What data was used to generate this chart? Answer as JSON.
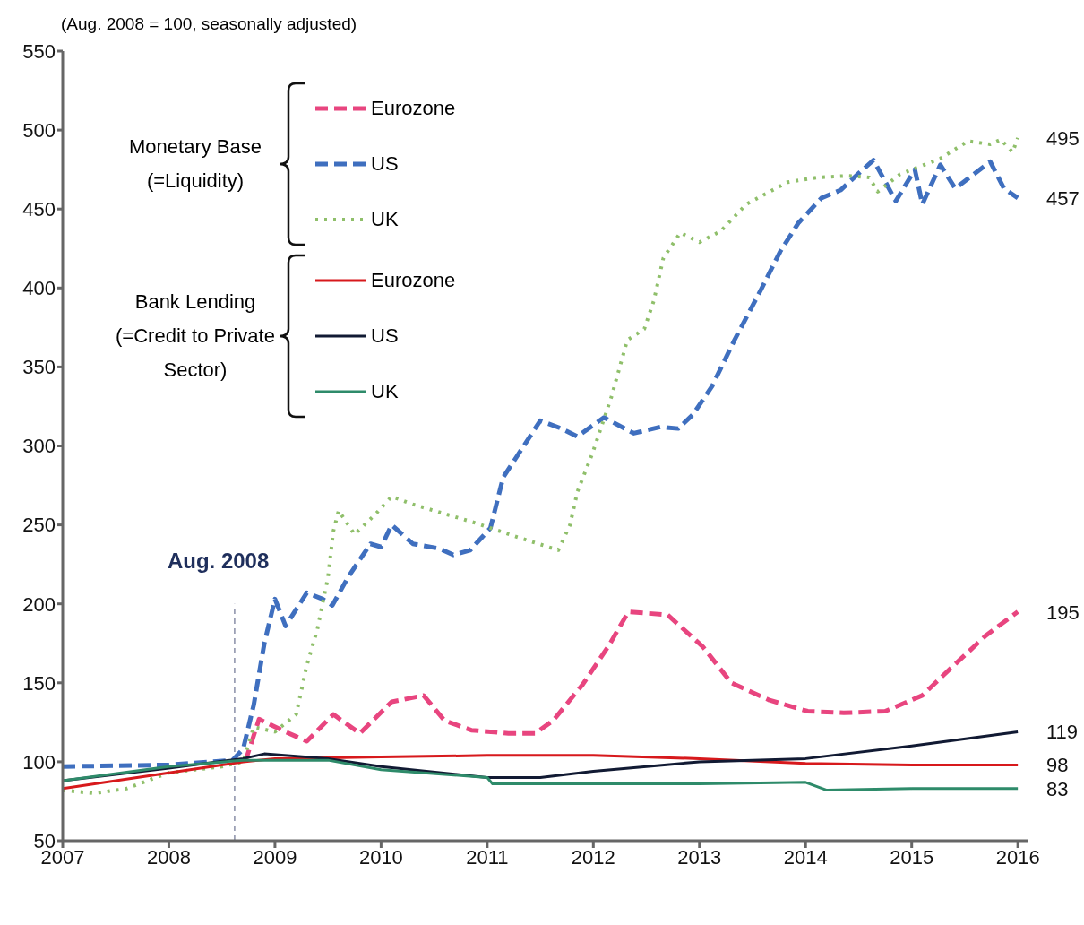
{
  "chart_data": {
    "type": "line",
    "subtitle": "(Aug. 2008 = 100, seasonally adjusted)",
    "annotations": [
      "Monetary Base (=Liquidity)",
      "Bank Lending (=Credit to Private Sector)"
    ],
    "xlim": [
      2007,
      2016.1
    ],
    "xticks": [
      2007,
      2008,
      2009,
      2010,
      2011,
      2012,
      2013,
      2014,
      2015,
      2016
    ],
    "ylim": [
      50,
      550
    ],
    "yticks": [
      50,
      100,
      150,
      200,
      250,
      300,
      350,
      400,
      450,
      500,
      550
    ],
    "legend": "top left",
    "marker": "none",
    "ref_lines": [
      {
        "axis": "x",
        "value": 2008.62,
        "label": "Aug. 2008",
        "color": "#8a8fa8",
        "line_style": "dashed"
      }
    ],
    "series": [
      {
        "name": "Eurozone",
        "color": "#e8457f",
        "line_style": "dashed",
        "x": [
          2008.72,
          2008.85,
          2009.1,
          2009.3,
          2009.55,
          2009.8,
          2010.1,
          2010.4,
          2010.6,
          2010.85,
          2011.2,
          2011.45,
          2011.62,
          2011.9,
          2012.15,
          2012.33,
          2012.7,
          2013.03,
          2013.3,
          2013.66,
          2014.02,
          2014.36,
          2014.75,
          2015.1,
          2015.38,
          2015.7,
          2016.0
        ],
        "values": [
          100,
          127,
          119,
          113,
          130,
          118,
          138,
          142,
          126,
          120,
          118,
          118,
          126,
          149,
          174,
          195,
          193,
          173,
          150,
          139,
          132,
          131,
          132,
          142,
          160,
          180,
          195
        ],
        "value_labels": [
          null,
          null,
          null,
          null,
          null,
          null,
          null,
          null,
          null,
          null,
          null,
          null,
          null,
          null,
          null,
          null,
          null,
          null,
          null,
          null,
          null,
          null,
          null,
          null,
          null,
          null,
          "195"
        ]
      },
      {
        "name": "US",
        "color": "#3f6fbf",
        "line_style": "dashed",
        "x": [
          2007,
          2008.0,
          2008.6,
          2008.7,
          2008.8,
          2008.9,
          2009.0,
          2009.1,
          2009.3,
          2009.45,
          2009.54,
          2009.69,
          2009.9,
          2010.0,
          2010.1,
          2010.3,
          2010.55,
          2010.68,
          2010.84,
          2011.03,
          2011.15,
          2011.5,
          2011.7,
          2011.85,
          2012.1,
          2012.38,
          2012.63,
          2012.8,
          2012.94,
          2013.12,
          2013.33,
          2013.58,
          2013.76,
          2013.93,
          2014.15,
          2014.33,
          2014.54,
          2014.64,
          2014.85,
          2015.03,
          2015.1,
          2015.27,
          2015.41,
          2015.74,
          2015.87,
          2016.0
        ],
        "values": [
          97,
          98,
          101,
          108,
          136,
          175,
          203,
          186,
          207,
          203,
          199,
          217,
          238,
          236,
          250,
          238,
          235,
          231,
          234,
          248,
          280,
          316,
          311,
          306,
          318,
          308,
          312,
          311,
          320,
          338,
          367,
          399,
          423,
          441,
          457,
          462,
          475,
          481,
          455,
          475,
          453,
          478,
          463,
          480,
          463,
          457
        ],
        "value_labels": [
          null,
          null,
          null,
          null,
          null,
          null,
          null,
          null,
          null,
          null,
          null,
          null,
          null,
          null,
          null,
          null,
          null,
          null,
          null,
          null,
          null,
          null,
          null,
          null,
          null,
          null,
          null,
          null,
          null,
          null,
          null,
          null,
          null,
          null,
          null,
          null,
          null,
          null,
          null,
          null,
          null,
          null,
          null,
          null,
          null,
          "457"
        ]
      },
      {
        "name": "UK",
        "color": "#8fbf6a",
        "line_style": "dotted",
        "x": [
          2007,
          2007.3,
          2007.6,
          2008.0,
          2008.5,
          2008.7,
          2008.8,
          2009.0,
          2009.2,
          2009.3,
          2009.4,
          2009.5,
          2009.55,
          2009.6,
          2009.75,
          2009.95,
          2010.1,
          2010.3,
          2010.6,
          2010.9,
          2011.25,
          2011.67,
          2011.78,
          2011.85,
          2011.99,
          2012.17,
          2012.32,
          2012.48,
          2012.57,
          2012.66,
          2012.82,
          2013.0,
          2013.2,
          2013.44,
          2013.83,
          2014.11,
          2014.39,
          2014.6,
          2014.68,
          2014.89,
          2015.27,
          2015.53,
          2015.74,
          2015.84,
          2015.95,
          2016.0
        ],
        "values": [
          82,
          80,
          83,
          93,
          97,
          100,
          122,
          119,
          130,
          161,
          184,
          217,
          246,
          259,
          244,
          257,
          268,
          263,
          257,
          251,
          243,
          234,
          250,
          271,
          295,
          331,
          367,
          374,
          392,
          419,
          435,
          429,
          436,
          453,
          467,
          470,
          471,
          470,
          461,
          472,
          482,
          493,
          491,
          494,
          486,
          495
        ],
        "value_labels": [
          null,
          null,
          null,
          null,
          null,
          null,
          null,
          null,
          null,
          null,
          null,
          null,
          null,
          null,
          null,
          null,
          null,
          null,
          null,
          null,
          null,
          null,
          null,
          null,
          null,
          null,
          null,
          null,
          null,
          null,
          null,
          null,
          null,
          null,
          null,
          null,
          null,
          null,
          null,
          null,
          null,
          null,
          null,
          null,
          null,
          "495"
        ]
      },
      {
        "name": "Eurozone",
        "color": "#d7191c",
        "line_style": "solid",
        "x": [
          2007,
          2008,
          2008.7,
          2009,
          2010,
          2011,
          2012,
          2013,
          2014,
          2015,
          2016.0
        ],
        "values": [
          83,
          93,
          100,
          102,
          103,
          104,
          104,
          102,
          99,
          98,
          98
        ],
        "value_labels": [
          null,
          null,
          null,
          null,
          null,
          null,
          null,
          null,
          null,
          null,
          "98"
        ]
      },
      {
        "name": "US",
        "color": "#111a33",
        "line_style": "solid",
        "x": [
          2007,
          2008,
          2008.7,
          2008.9,
          2009.5,
          2010,
          2011,
          2011.5,
          2012,
          2013,
          2014,
          2015,
          2016.0
        ],
        "values": [
          88,
          96,
          102,
          105,
          102,
          97,
          90,
          90,
          94,
          100,
          102,
          110,
          119
        ],
        "value_labels": [
          null,
          null,
          null,
          null,
          null,
          null,
          null,
          null,
          null,
          null,
          null,
          null,
          "119"
        ]
      },
      {
        "name": "UK",
        "color": "#2e8b6a",
        "line_style": "solid",
        "x": [
          2007,
          2008,
          2008.7,
          2009.5,
          2010,
          2011,
          2011.05,
          2012,
          2013,
          2014,
          2014.2,
          2015,
          2016.0
        ],
        "values": [
          88,
          97,
          101,
          101,
          95,
          90,
          86,
          86,
          86,
          87,
          82,
          83,
          83
        ],
        "value_labels": [
          null,
          null,
          null,
          null,
          null,
          null,
          null,
          null,
          null,
          null,
          null,
          null,
          "83"
        ]
      }
    ]
  }
}
